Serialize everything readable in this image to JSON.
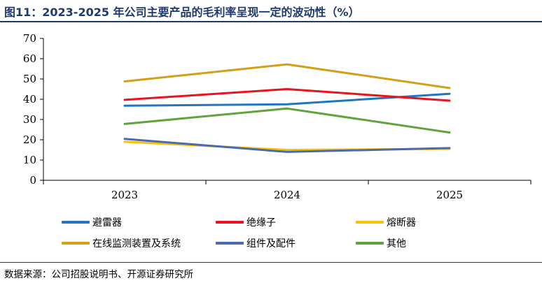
{
  "header": {
    "title": "图11：2023-2025 年公司主要产品的毛利率呈现一定的波动性（%）"
  },
  "footer": {
    "source": "数据来源：公司招股说明书、开源证券研究所"
  },
  "chart_data": {
    "type": "line",
    "title": "图11：2023-2025 年公司主要产品的毛利率呈现一定的波动性（%）",
    "xlabel": "",
    "ylabel": "",
    "x": [
      "2023",
      "2024",
      "2025"
    ],
    "ylim": [
      0,
      70
    ],
    "yticks": [
      0,
      10,
      20,
      30,
      40,
      50,
      60,
      70
    ],
    "grid": false,
    "legend_position": "bottom",
    "series": [
      {
        "name": "避雷器",
        "color": "#1f77c4",
        "values": [
          36.8,
          37.5,
          42.7
        ]
      },
      {
        "name": "绝缘子",
        "color": "#e8141c",
        "values": [
          39.7,
          45.0,
          39.3
        ]
      },
      {
        "name": "熔断器",
        "color": "#ffc000",
        "values": [
          19.0,
          15.0,
          15.5
        ]
      },
      {
        "name": "在线监测装置及系统",
        "color": "#d4a017",
        "values": [
          48.8,
          57.2,
          45.5
        ]
      },
      {
        "name": "组件及配件",
        "color": "#4a6bb0",
        "values": [
          20.4,
          14.0,
          15.9
        ]
      },
      {
        "name": "其他",
        "color": "#62a33d",
        "values": [
          27.8,
          35.4,
          23.6
        ]
      }
    ]
  }
}
